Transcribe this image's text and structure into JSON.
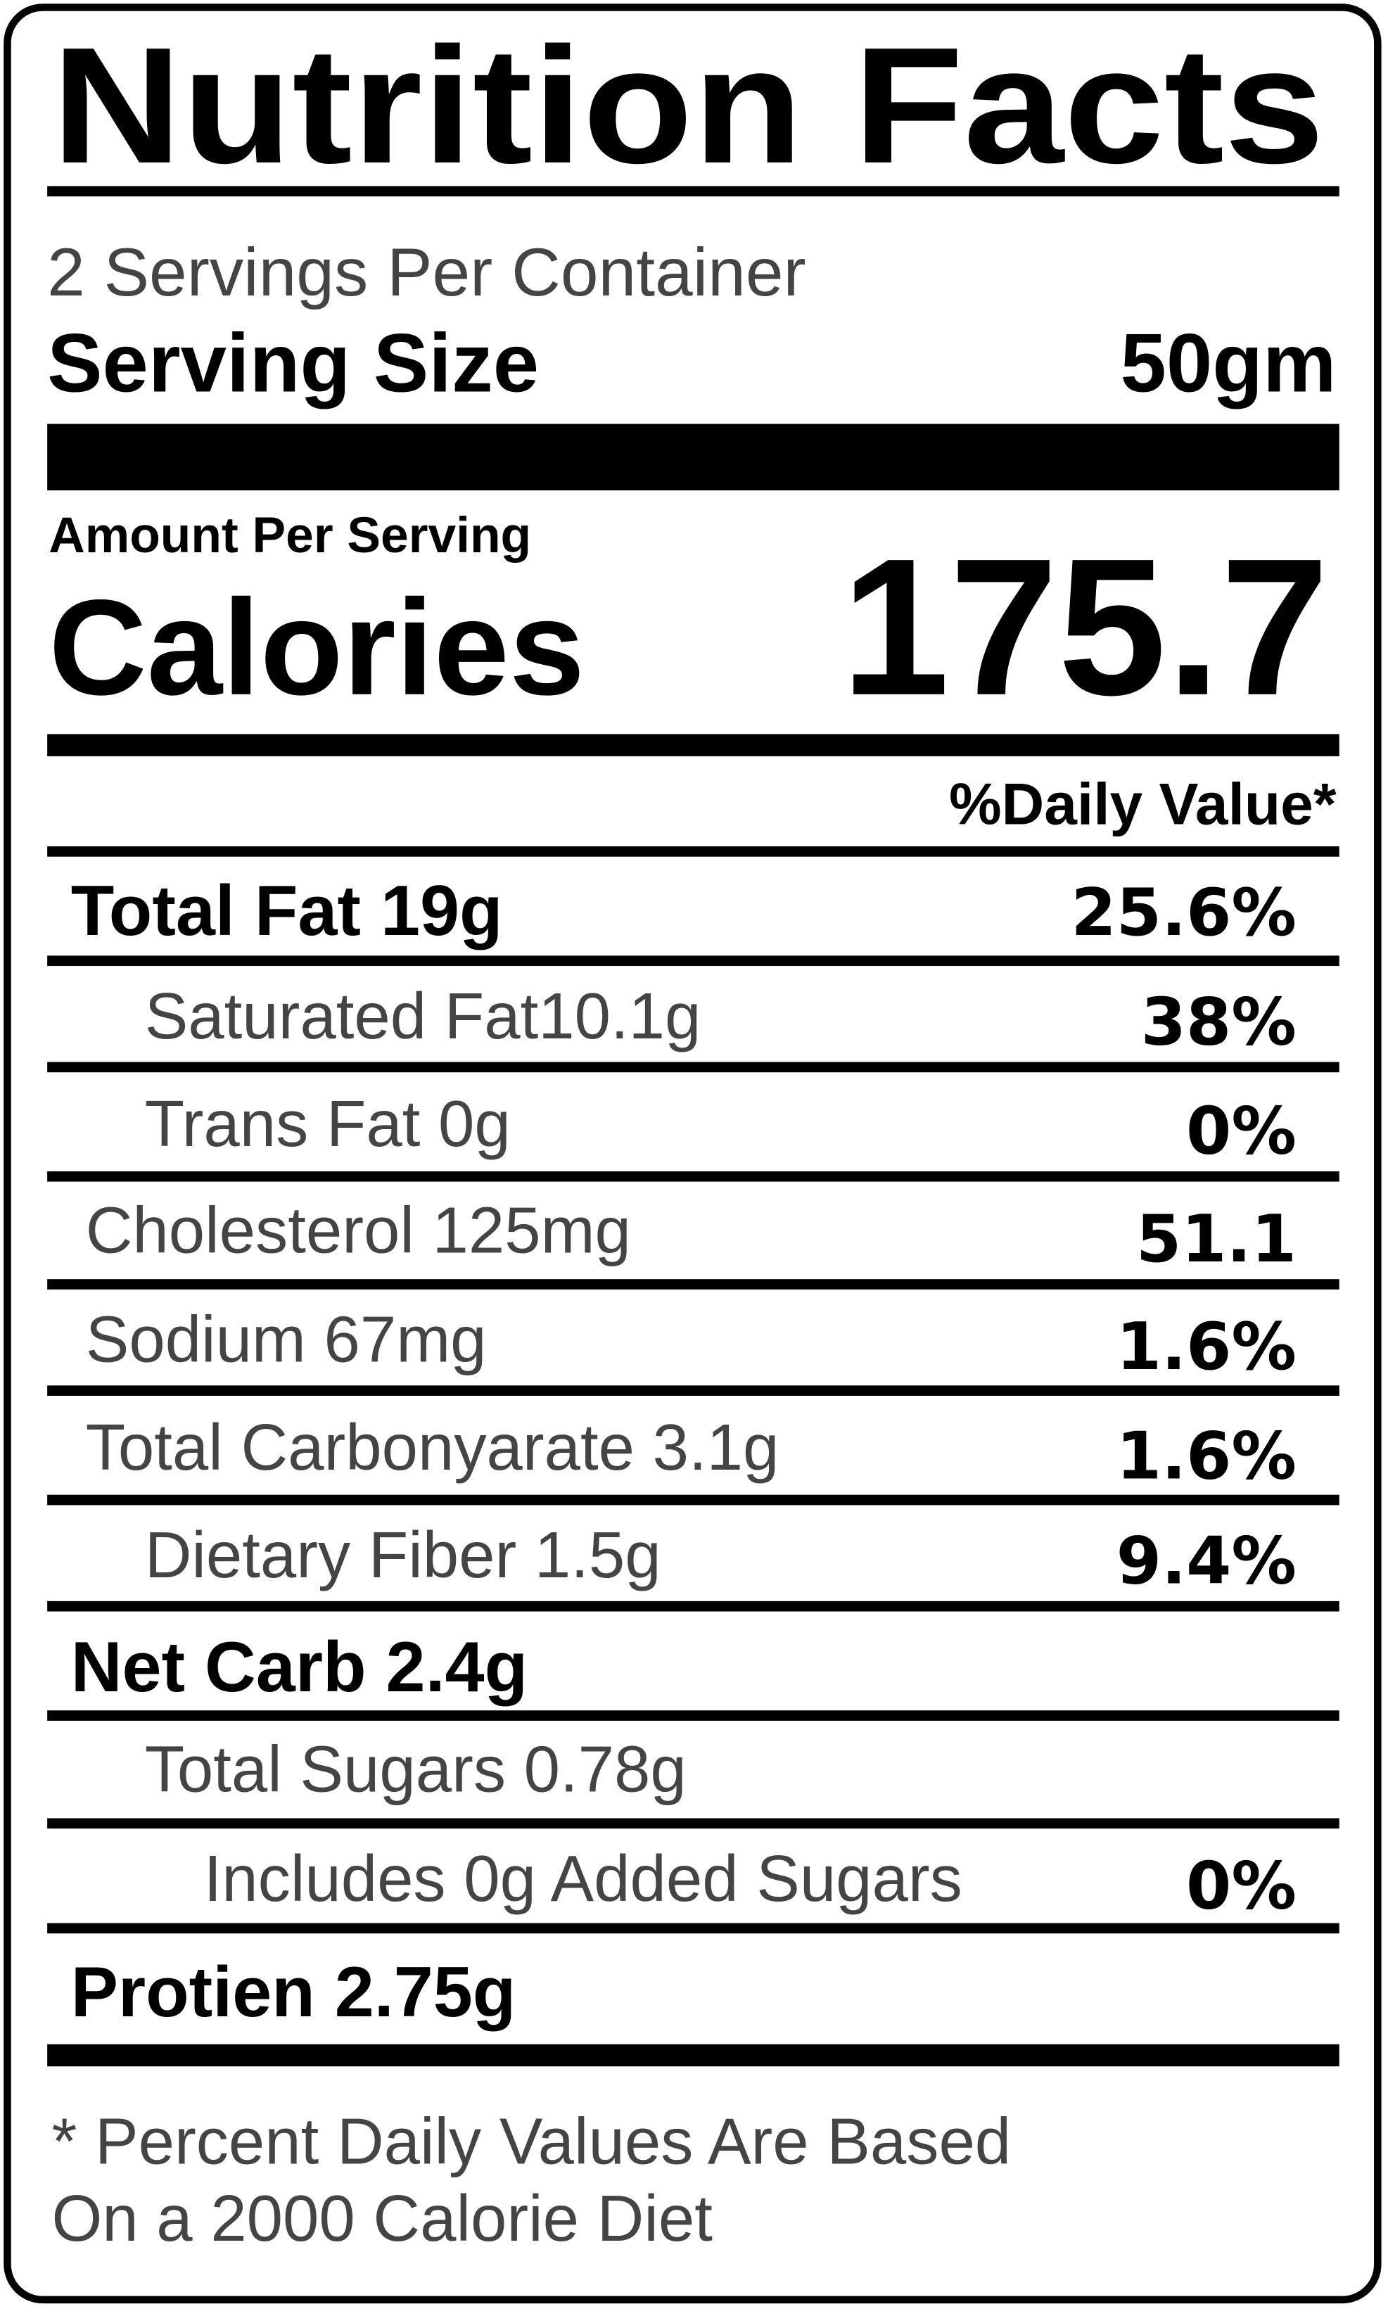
{
  "title": "Nutrition Facts",
  "servings": "2 Servings Per Container",
  "serving_size": {
    "label": "Serving Size",
    "value": "50gm"
  },
  "amount_per_serving": "Amount Per Serving",
  "calories": {
    "label": "Calories",
    "value": "175.7"
  },
  "daily_value_header": "%Daily Value*",
  "rows": [
    {
      "label": "Total Fat 19g",
      "dv": "25.6%"
    },
    {
      "label": "Saturated Fat10.1g",
      "dv": "38%"
    },
    {
      "label": "Trans Fat 0g",
      "dv": "0%"
    },
    {
      "label": "Cholesterol 125mg",
      "dv": "51.1"
    },
    {
      "label": "Sodium 67mg",
      "dv": "1.6%"
    },
    {
      "label": "Total Carbonyarate 3.1g",
      "dv": "1.6%"
    },
    {
      "label": "Dietary Fiber 1.5g",
      "dv": "9.4%"
    },
    {
      "label": "Net Carb 2.4g"
    },
    {
      "label": "Total Sugars 0.78g"
    },
    {
      "label": "Includes 0g Added Sugars",
      "dv": "0%"
    },
    {
      "label": "Protien 2.75g"
    }
  ],
  "footnote": [
    "* Percent Daily Values Are Based",
    "On a 2000 Calorie Diet"
  ]
}
